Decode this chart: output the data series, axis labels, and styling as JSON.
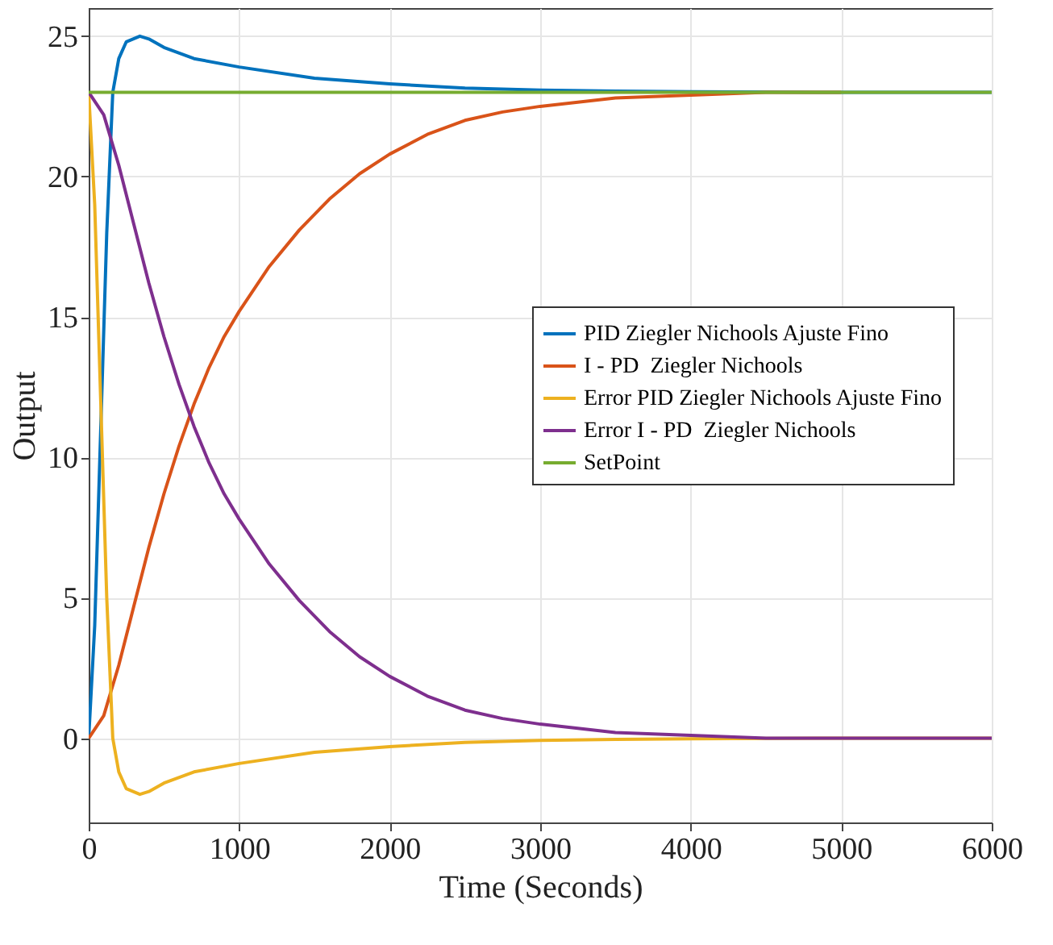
{
  "chart_data": {
    "type": "line",
    "xlabel": "Time (Seconds)",
    "ylabel": "Output",
    "xlim": [
      0,
      6000
    ],
    "xticks": [
      0,
      1000,
      2000,
      3000,
      4000,
      5000,
      6000
    ],
    "ylim": [
      -3,
      26
    ],
    "yticks": [
      0,
      5,
      10,
      15,
      20,
      25
    ],
    "grid": true,
    "legend": "right",
    "line_style": "solid",
    "marker": "none",
    "series": [
      {
        "name": "PID Ziegler Nichools Ajuste Fino",
        "color": "#0072bd",
        "x": [
          0,
          40,
          80,
          120,
          160,
          200,
          250,
          340,
          400,
          500,
          700,
          1000,
          1500,
          2000,
          2500,
          3000,
          3500,
          4000,
          5000,
          6000
        ],
        "values": [
          0,
          4,
          11,
          18,
          23,
          24.2,
          24.8,
          25,
          24.9,
          24.6,
          24.2,
          23.9,
          23.5,
          23.3,
          23.15,
          23.08,
          23.04,
          23.02,
          23,
          23
        ]
      },
      {
        "name": "I - PD  Ziegler Nichools",
        "color": "#d95319",
        "x": [
          0,
          100,
          200,
          300,
          400,
          500,
          600,
          700,
          800,
          900,
          1000,
          1200,
          1400,
          1600,
          1800,
          2000,
          2250,
          2500,
          2750,
          3000,
          3500,
          4000,
          4500,
          5000
        ],
        "values": [
          0,
          0.8,
          2.6,
          4.7,
          6.8,
          8.7,
          10.4,
          11.9,
          13.2,
          14.3,
          15.2,
          16.8,
          18.1,
          19.2,
          20.1,
          20.8,
          21.5,
          22,
          22.3,
          22.5,
          22.8,
          22.9,
          23,
          23
        ]
      },
      {
        "name": "Error PID Ziegler Nichools Ajuste Fino",
        "color": "#edb120",
        "x": [
          0,
          40,
          80,
          120,
          160,
          200,
          250,
          340,
          400,
          500,
          700,
          1000,
          1500,
          2000,
          2500,
          3000,
          3500,
          4000,
          5000,
          6000
        ],
        "values": [
          23,
          19,
          12,
          5,
          0,
          -1.2,
          -1.8,
          -2,
          -1.9,
          -1.6,
          -1.2,
          -0.9,
          -0.5,
          -0.3,
          -0.15,
          -0.08,
          -0.04,
          -0.02,
          0,
          0
        ]
      },
      {
        "name": "Error I - PD  Ziegler Nichools",
        "color": "#7e2f8e",
        "x": [
          0,
          100,
          200,
          300,
          400,
          500,
          600,
          700,
          800,
          900,
          1000,
          1200,
          1400,
          1600,
          1800,
          2000,
          2250,
          2500,
          2750,
          3000,
          3500,
          4000,
          4500,
          5000,
          5500,
          6000
        ],
        "values": [
          23,
          22.2,
          20.4,
          18.3,
          16.2,
          14.3,
          12.6,
          11.1,
          9.8,
          8.7,
          7.8,
          6.2,
          4.9,
          3.8,
          2.9,
          2.2,
          1.5,
          1,
          0.7,
          0.5,
          0.2,
          0.1,
          0,
          0,
          0,
          0
        ]
      },
      {
        "name": "SetPoint",
        "color": "#77ac30",
        "x": [
          0,
          6000
        ],
        "values": [
          23,
          23
        ]
      }
    ]
  }
}
